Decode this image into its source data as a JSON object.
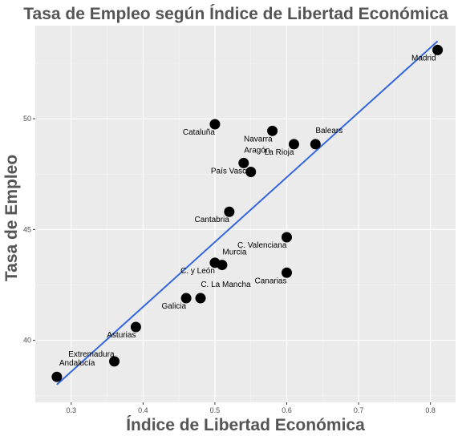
{
  "chart_data": {
    "type": "scatter",
    "title": "Tasa de Empleo según Índice de Libertad Económica",
    "xlabel": "Índice de Libertad Económica",
    "ylabel": "Tasa de Empleo",
    "xlim": [
      0.25,
      0.835
    ],
    "ylim": [
      37.2,
      54.2
    ],
    "x_ticks": [
      0.3,
      0.4,
      0.5,
      0.6,
      0.7,
      0.8
    ],
    "x_tick_labels": [
      "0.3",
      "0.4",
      "0.5",
      "0.6",
      "0.7",
      "0.8"
    ],
    "y_ticks": [
      40,
      45,
      50
    ],
    "y_tick_labels": [
      "40",
      "45",
      "50"
    ],
    "grid": true,
    "trend_line": {
      "x": [
        0.28,
        0.81
      ],
      "y": [
        38.0,
        53.5
      ],
      "color": "#3366dd"
    },
    "points": [
      {
        "label": "Madrid",
        "x": 0.81,
        "y": 53.1,
        "lx": -2,
        "ly": 1.6,
        "anchor": "end"
      },
      {
        "label": "Cataluña",
        "x": 0.5,
        "y": 49.75,
        "lx": 0,
        "ly": 1.6,
        "anchor": "end"
      },
      {
        "label": "Navarra",
        "x": 0.58,
        "y": 49.45,
        "lx": 0,
        "ly": 1.6,
        "anchor": "end"
      },
      {
        "label": "Balears",
        "x": 0.64,
        "y": 48.85,
        "lx": 0,
        "ly": -1.1,
        "anchor": "start"
      },
      {
        "label": "La Rioja",
        "x": 0.61,
        "y": 48.85,
        "lx": 0,
        "ly": 1.6,
        "anchor": "end"
      },
      {
        "label": "Aragón",
        "x": 0.54,
        "y": 48.0,
        "lx": 0.5,
        "ly": -1.0,
        "anchor": "start"
      },
      {
        "label": "País Vasco",
        "x": 0.55,
        "y": 47.6,
        "lx": 0,
        "ly": 0.5,
        "anchor": "end"
      },
      {
        "label": "Cantabria",
        "x": 0.52,
        "y": 45.8,
        "lx": 0,
        "ly": 1.6,
        "anchor": "end"
      },
      {
        "label": "C. Valenciana",
        "x": 0.6,
        "y": 44.65,
        "lx": 0,
        "ly": 1.6,
        "anchor": "end"
      },
      {
        "label": "Murcia",
        "x": 0.51,
        "y": 43.4,
        "lx": 0.5,
        "ly": -1.0,
        "anchor": "start"
      },
      {
        "label": "C. y León",
        "x": 0.5,
        "y": 43.5,
        "lx": 0,
        "ly": 1.6,
        "anchor": "end"
      },
      {
        "label": "Canarias",
        "x": 0.6,
        "y": 43.05,
        "lx": 0,
        "ly": 1.6,
        "anchor": "end"
      },
      {
        "label": "C. La Mancha",
        "x": 0.48,
        "y": 41.9,
        "lx": 0.3,
        "ly": -1.1,
        "anchor": "start"
      },
      {
        "label": "Galicia",
        "x": 0.46,
        "y": 41.9,
        "lx": 0,
        "ly": 1.6,
        "anchor": "end"
      },
      {
        "label": "Asturias",
        "x": 0.39,
        "y": 40.6,
        "lx": 0,
        "ly": 1.6,
        "anchor": "end"
      },
      {
        "label": "Extremadura",
        "x": 0.36,
        "y": 39.05,
        "lx": 0,
        "ly": -0.3,
        "anchor": "end"
      },
      {
        "label": "Andalucía",
        "x": 0.28,
        "y": 38.35,
        "lx": 3,
        "ly": -1.1,
        "anchor": "start"
      }
    ]
  }
}
